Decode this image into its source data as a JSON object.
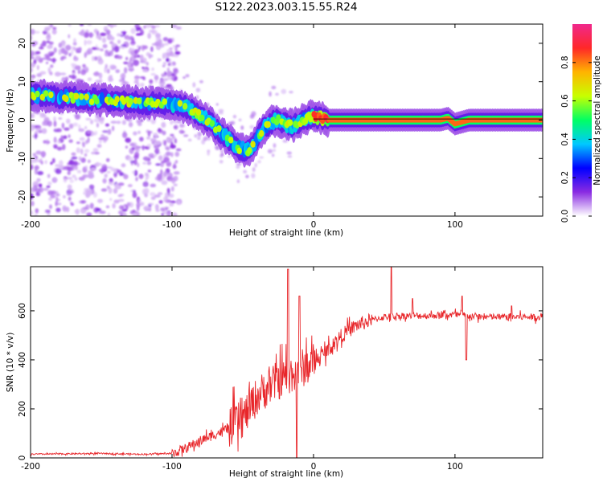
{
  "title": "S122.2023.003.15.55.R24",
  "chart_data": [
    {
      "type": "heatmap",
      "name": "spectrogram",
      "xlabel": "Height of straight line (km)",
      "ylabel": "Frequency (Hz)",
      "xlim": [
        -200,
        162
      ],
      "ylim": [
        -25,
        25
      ],
      "xticks": [
        -200,
        -100,
        0,
        100
      ],
      "yticks": [
        -20,
        -10,
        0,
        10,
        20
      ],
      "colorbar": {
        "label": "Normalized spectral amplitude",
        "range": [
          0,
          1
        ],
        "ticks": [
          "0.0",
          "0.2",
          "0.4",
          "0.6",
          "0.8"
        ],
        "colors": [
          "#ffffff",
          "#8a2be2",
          "#0000ff",
          "#00c8ff",
          "#00ff64",
          "#c8ff00",
          "#ffb400",
          "#ff2828",
          "#f0288c"
        ]
      },
      "ridge": {
        "description_points_km_hz": [
          [
            -200,
            6.5
          ],
          [
            -180,
            6
          ],
          [
            -160,
            5.5
          ],
          [
            -140,
            5
          ],
          [
            -120,
            4.5
          ],
          [
            -110,
            4.3
          ],
          [
            -95,
            4
          ],
          [
            -85,
            2.5
          ],
          [
            -75,
            0
          ],
          [
            -68,
            -2.5
          ],
          [
            -60,
            -5
          ],
          [
            -52,
            -7.5
          ],
          [
            -45,
            -8
          ],
          [
            -40,
            -5
          ],
          [
            -35,
            -2
          ],
          [
            -30,
            -0.5
          ],
          [
            -25,
            0
          ],
          [
            -20,
            -1
          ],
          [
            -15,
            -1.5
          ],
          [
            -10,
            -0.5
          ],
          [
            -5,
            0.5
          ],
          [
            0,
            1
          ],
          [
            5,
            0.5
          ],
          [
            10,
            0
          ],
          [
            60,
            0
          ],
          [
            90,
            0
          ],
          [
            95,
            0.5
          ],
          [
            100,
            -1
          ],
          [
            110,
            0
          ],
          [
            162,
            0
          ]
        ]
      },
      "noise_region_km": [
        -200,
        -95
      ]
    },
    {
      "type": "line",
      "name": "snr",
      "xlabel": "Height of straight line (km)",
      "ylabel": "SNR (10 * v/v)",
      "xlim": [
        -200,
        162
      ],
      "ylim": [
        0,
        780
      ],
      "xticks": [
        -200,
        -100,
        0,
        100
      ],
      "yticks": [
        0,
        200,
        400,
        600
      ],
      "color": "#e8262a",
      "trend_km_snr": [
        [
          -200,
          15
        ],
        [
          -150,
          18
        ],
        [
          -120,
          15
        ],
        [
          -100,
          18
        ],
        [
          -90,
          40
        ],
        [
          -80,
          70
        ],
        [
          -70,
          95
        ],
        [
          -60,
          120
        ],
        [
          -50,
          160
        ],
        [
          -40,
          250
        ],
        [
          -30,
          300
        ],
        [
          -20,
          330
        ],
        [
          -10,
          360
        ],
        [
          0,
          390
        ],
        [
          10,
          440
        ],
        [
          20,
          500
        ],
        [
          30,
          540
        ],
        [
          40,
          560
        ],
        [
          50,
          575
        ],
        [
          60,
          580
        ],
        [
          80,
          580
        ],
        [
          100,
          585
        ],
        [
          120,
          575
        ],
        [
          140,
          575
        ],
        [
          162,
          575
        ]
      ],
      "spikes_km_snr": [
        [
          -18,
          770
        ],
        [
          -10,
          660
        ],
        [
          -12,
          0
        ],
        [
          55,
          780
        ],
        [
          70,
          650
        ],
        [
          105,
          660
        ],
        [
          108,
          400
        ],
        [
          140,
          620
        ]
      ]
    }
  ]
}
